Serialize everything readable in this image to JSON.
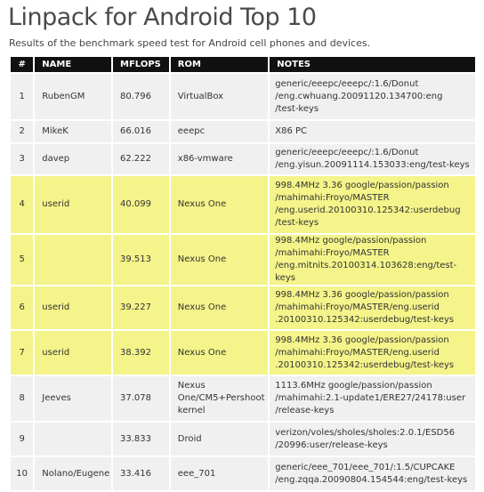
{
  "page": {
    "title": "Linpack for Android Top 10",
    "subtitle": "Results of the benchmark speed test for Android cell phones and devices."
  },
  "table": {
    "headers": [
      "#",
      "NAME",
      "MFLOPS",
      "ROM",
      "NOTES"
    ],
    "rows": [
      {
        "rank": "1",
        "name": "RubenGM",
        "mflops": "80.796",
        "rom": "VirtualBox",
        "notes": [
          "generic/eeepc/eeepc/:1.6/Donut",
          "/eng.cwhuang.20091120.134700:eng",
          "/test-keys"
        ],
        "highlight": false
      },
      {
        "rank": "2",
        "name": "MikeK",
        "mflops": "66.016",
        "rom": "eeepc",
        "notes": [
          "X86 PC"
        ],
        "highlight": false
      },
      {
        "rank": "3",
        "name": "davep",
        "mflops": "62.222",
        "rom": "x86-vmware",
        "notes": [
          "generic/eeepc/eeepc/:1.6/Donut",
          "/eng.yisun.20091114.153033:eng/test-keys"
        ],
        "highlight": false
      },
      {
        "rank": "4",
        "name": "userid",
        "mflops": "40.099",
        "rom": "Nexus One",
        "notes": [
          "998.4MHz 3.36 google/passion/passion",
          "/mahimahi:Froyo/MASTER",
          "/eng.userid.20100310.125342:userdebug",
          "/test-keys"
        ],
        "highlight": true
      },
      {
        "rank": "5",
        "name": "",
        "mflops": "39.513",
        "rom": "Nexus One",
        "notes": [
          "998.4MHz google/passion/passion",
          "/mahimahi:Froyo/MASTER",
          "/eng.mitnits.20100314.103628:eng/test-keys"
        ],
        "highlight": true
      },
      {
        "rank": "6",
        "name": "userid",
        "mflops": "39.227",
        "rom": "Nexus One",
        "notes": [
          "998.4MHz 3.36 google/passion/passion",
          "/mahimahi:Froyo/MASTER/eng.userid",
          ".20100310.125342:userdebug/test-keys"
        ],
        "highlight": true
      },
      {
        "rank": "7",
        "name": "userid",
        "mflops": "38.392",
        "rom": "Nexus One",
        "notes": [
          "998.4MHz 3.36 google/passion/passion",
          "/mahimahi:Froyo/MASTER/eng.userid",
          ".20100310.125342:userdebug/test-keys"
        ],
        "highlight": true
      },
      {
        "rank": "8",
        "name": "Jeeves",
        "mflops": "37.078",
        "rom": [
          "Nexus",
          "One/CM5+Pershoot",
          "kernel"
        ],
        "notes": [
          "1113.6MHz google/passion/passion",
          "/mahimahi:2.1-update1/ERE27/24178:user",
          "/release-keys"
        ],
        "highlight": false
      },
      {
        "rank": "9",
        "name": "",
        "mflops": "33.833",
        "rom": "Droid",
        "notes": [
          "verizon/voles/sholes/sholes:2.0.1/ESD56",
          "/20996:user/release-keys"
        ],
        "highlight": false
      },
      {
        "rank": "10",
        "name": "Nolano/Eugene",
        "mflops": "33.416",
        "rom": "eee_701",
        "notes": [
          "generic/eee_701/eee_701/:1.5/CUPCAKE",
          "/eng.zqqa.20090804.154544:eng/test-keys"
        ],
        "highlight": false
      }
    ]
  }
}
